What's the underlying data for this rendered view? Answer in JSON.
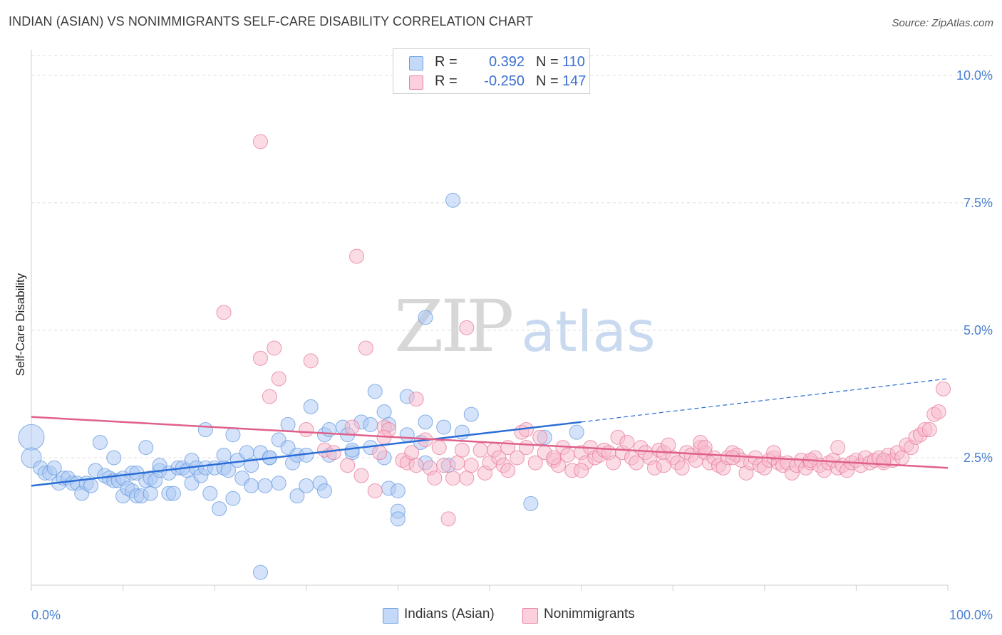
{
  "title": "INDIAN (ASIAN) VS NONIMMIGRANTS SELF-CARE DISABILITY CORRELATION CHART",
  "source": "Source: ZipAtlas.com",
  "watermark": {
    "zip": "ZIP",
    "atlas": "atlas"
  },
  "legend": {
    "rows": [
      {
        "r_label": "R =",
        "r_value": "0.392",
        "n_label": "N =",
        "n_value": "110",
        "color": "#aac8f4"
      },
      {
        "r_label": "R =",
        "r_value": "-0.250",
        "n_label": "N =",
        "n_value": "147",
        "color": "#f8b9cc"
      }
    ]
  },
  "bottom_legend": [
    {
      "label": "Indians (Asian)",
      "color": "#aac8f4"
    },
    {
      "label": "Nonimmigrants",
      "color": "#f8b9cc"
    }
  ],
  "chart_data": {
    "type": "scatter",
    "ylabel": "Self-Care Disability",
    "xlabel": "",
    "xlim": [
      0,
      100
    ],
    "ylim": [
      0,
      10.5
    ],
    "x_tick_labels": [
      "0.0%",
      "100.0%"
    ],
    "y_ticks": [
      2.5,
      5.0,
      7.5,
      10.0
    ],
    "y_tick_labels": [
      "2.5%",
      "5.0%",
      "7.5%",
      "10.0%"
    ],
    "grid": "horizontal dashed",
    "series": [
      {
        "name": "Indians (Asian)",
        "color": "#aac8f4",
        "stroke": "#6b9ee0",
        "trend_color": "#2a6dd6",
        "trend": {
          "x0": 0,
          "y0": 1.95,
          "x1": 60,
          "y1": 3.2,
          "dashed_to_x": 100,
          "dashed_to_y": 4.05
        },
        "points": [
          [
            0,
            2.9
          ],
          [
            0,
            2.5
          ],
          [
            1,
            2.3
          ],
          [
            1.5,
            2.2
          ],
          [
            2,
            2.2
          ],
          [
            2.5,
            2.3
          ],
          [
            3,
            2.0
          ],
          [
            3.5,
            2.1
          ],
          [
            4,
            2.1
          ],
          [
            4.5,
            2.0
          ],
          [
            5,
            2.0
          ],
          [
            5.5,
            1.8
          ],
          [
            6,
            2.0
          ],
          [
            6.5,
            1.95
          ],
          [
            7,
            2.25
          ],
          [
            7.5,
            2.8
          ],
          [
            8,
            2.15
          ],
          [
            8.5,
            2.1
          ],
          [
            9,
            2.5
          ],
          [
            9,
            2.05
          ],
          [
            9.5,
            2.05
          ],
          [
            10,
            2.1
          ],
          [
            10,
            1.75
          ],
          [
            10.5,
            1.9
          ],
          [
            11,
            2.2
          ],
          [
            11,
            1.85
          ],
          [
            11.5,
            2.2
          ],
          [
            11.5,
            1.75
          ],
          [
            12,
            1.75
          ],
          [
            12.5,
            2.05
          ],
          [
            12.5,
            2.7
          ],
          [
            13,
            2.1
          ],
          [
            13,
            1.8
          ],
          [
            13.5,
            2.05
          ],
          [
            14,
            2.25
          ],
          [
            14,
            2.35
          ],
          [
            15,
            2.2
          ],
          [
            15,
            1.8
          ],
          [
            15.5,
            1.8
          ],
          [
            16,
            2.3
          ],
          [
            16.5,
            2.3
          ],
          [
            17,
            2.25
          ],
          [
            17.5,
            2.45
          ],
          [
            17.5,
            2.0
          ],
          [
            18,
            2.3
          ],
          [
            18.5,
            2.15
          ],
          [
            19,
            2.3
          ],
          [
            19,
            3.05
          ],
          [
            19.5,
            1.8
          ],
          [
            20,
            2.3
          ],
          [
            20.5,
            1.5
          ],
          [
            21,
            2.55
          ],
          [
            21,
            2.3
          ],
          [
            21.5,
            2.25
          ],
          [
            22,
            2.95
          ],
          [
            22,
            1.7
          ],
          [
            22.5,
            2.45
          ],
          [
            23,
            2.1
          ],
          [
            23.5,
            2.6
          ],
          [
            24,
            2.35
          ],
          [
            24,
            1.95
          ],
          [
            25,
            2.6
          ],
          [
            25,
            0.25
          ],
          [
            25.5,
            1.95
          ],
          [
            26,
            2.5
          ],
          [
            26,
            2.5
          ],
          [
            27,
            2.0
          ],
          [
            27,
            2.85
          ],
          [
            28,
            2.7
          ],
          [
            28,
            3.15
          ],
          [
            28.5,
            2.4
          ],
          [
            29,
            2.55
          ],
          [
            29,
            1.75
          ],
          [
            30,
            1.95
          ],
          [
            30,
            2.55
          ],
          [
            30.5,
            3.5
          ],
          [
            31.5,
            2.0
          ],
          [
            32,
            1.85
          ],
          [
            32,
            2.95
          ],
          [
            32.5,
            3.05
          ],
          [
            32.5,
            2.55
          ],
          [
            34,
            3.1
          ],
          [
            34.5,
            2.95
          ],
          [
            35,
            2.6
          ],
          [
            35,
            2.65
          ],
          [
            36,
            3.2
          ],
          [
            37,
            2.7
          ],
          [
            37,
            3.15
          ],
          [
            37.5,
            3.8
          ],
          [
            38.5,
            2.5
          ],
          [
            38.5,
            3.4
          ],
          [
            39,
            1.9
          ],
          [
            39,
            3.15
          ],
          [
            40,
            1.85
          ],
          [
            40,
            1.45
          ],
          [
            40,
            1.3
          ],
          [
            41,
            3.7
          ],
          [
            41,
            2.95
          ],
          [
            42.5,
            2.8
          ],
          [
            43,
            2.4
          ],
          [
            43,
            3.2
          ],
          [
            43,
            5.25
          ],
          [
            45,
            3.1
          ],
          [
            45.5,
            2.35
          ],
          [
            46,
            7.55
          ],
          [
            47,
            3.0
          ],
          [
            48,
            3.35
          ],
          [
            56,
            2.9
          ],
          [
            54.5,
            1.6
          ],
          [
            59.5,
            3.0
          ]
        ]
      },
      {
        "name": "Nonimmigrants",
        "color": "#f8b9cc",
        "stroke": "#e87fa0",
        "trend_color": "#e0608a",
        "trend": {
          "x0": 0,
          "y0": 3.3,
          "x1": 100,
          "y1": 2.3
        },
        "points": [
          [
            25,
            8.7
          ],
          [
            35.5,
            6.45
          ],
          [
            47.5,
            5.05
          ],
          [
            21,
            5.35
          ],
          [
            26.5,
            4.65
          ],
          [
            36.5,
            4.65
          ],
          [
            25,
            4.45
          ],
          [
            30.5,
            4.4
          ],
          [
            27,
            4.05
          ],
          [
            26,
            3.7
          ],
          [
            42,
            3.65
          ],
          [
            35,
            3.1
          ],
          [
            38.5,
            3.1
          ],
          [
            30,
            3.05
          ],
          [
            39,
            3.05
          ],
          [
            32,
            2.65
          ],
          [
            33,
            2.6
          ],
          [
            34.5,
            2.35
          ],
          [
            36,
            2.15
          ],
          [
            38,
            2.6
          ],
          [
            38.5,
            2.9
          ],
          [
            37.5,
            1.85
          ],
          [
            40.5,
            2.45
          ],
          [
            41,
            2.4
          ],
          [
            41.5,
            2.6
          ],
          [
            42,
            2.35
          ],
          [
            43,
            2.85
          ],
          [
            43.5,
            2.3
          ],
          [
            44,
            2.1
          ],
          [
            44.5,
            2.7
          ],
          [
            45,
            2.35
          ],
          [
            45.5,
            1.3
          ],
          [
            46,
            2.1
          ],
          [
            46.5,
            2.4
          ],
          [
            47,
            2.65
          ],
          [
            47.5,
            2.1
          ],
          [
            48,
            2.35
          ],
          [
            49,
            2.65
          ],
          [
            49.5,
            2.2
          ],
          [
            50,
            2.4
          ],
          [
            50.5,
            2.65
          ],
          [
            51,
            2.5
          ],
          [
            51.5,
            2.35
          ],
          [
            52,
            2.7
          ],
          [
            53,
            2.5
          ],
          [
            53.5,
            3.0
          ],
          [
            54,
            3.05
          ],
          [
            54,
            2.7
          ],
          [
            55,
            2.4
          ],
          [
            55.5,
            2.9
          ],
          [
            56,
            2.6
          ],
          [
            57,
            2.45
          ],
          [
            57.5,
            2.35
          ],
          [
            58,
            2.7
          ],
          [
            58.5,
            2.55
          ],
          [
            59,
            2.25
          ],
          [
            60,
            2.6
          ],
          [
            60.5,
            2.4
          ],
          [
            61,
            2.7
          ],
          [
            61.5,
            2.5
          ],
          [
            62,
            2.55
          ],
          [
            62.5,
            2.65
          ],
          [
            63,
            2.6
          ],
          [
            63.5,
            2.4
          ],
          [
            64,
            2.9
          ],
          [
            64.5,
            2.6
          ],
          [
            65,
            2.8
          ],
          [
            65.5,
            2.5
          ],
          [
            66,
            2.4
          ],
          [
            66.5,
            2.7
          ],
          [
            67,
            2.6
          ],
          [
            67.5,
            2.5
          ],
          [
            68,
            2.3
          ],
          [
            68.5,
            2.65
          ],
          [
            69,
            2.6
          ],
          [
            69.5,
            2.75
          ],
          [
            70,
            2.5
          ],
          [
            70.5,
            2.4
          ],
          [
            71,
            2.3
          ],
          [
            71.5,
            2.6
          ],
          [
            72,
            2.55
          ],
          [
            72.5,
            2.45
          ],
          [
            73,
            2.7
          ],
          [
            73.5,
            2.6
          ],
          [
            74,
            2.4
          ],
          [
            74.5,
            2.5
          ],
          [
            75,
            2.35
          ],
          [
            75.5,
            2.3
          ],
          [
            76,
            2.5
          ],
          [
            76.5,
            2.6
          ],
          [
            77,
            2.55
          ],
          [
            77.5,
            2.45
          ],
          [
            78,
            2.2
          ],
          [
            78.5,
            2.4
          ],
          [
            79,
            2.5
          ],
          [
            79.5,
            2.35
          ],
          [
            80,
            2.3
          ],
          [
            80.5,
            2.45
          ],
          [
            81,
            2.5
          ],
          [
            81.5,
            2.4
          ],
          [
            82,
            2.35
          ],
          [
            82.5,
            2.4
          ],
          [
            83,
            2.2
          ],
          [
            83.5,
            2.35
          ],
          [
            84,
            2.45
          ],
          [
            84.5,
            2.3
          ],
          [
            85,
            2.4
          ],
          [
            85.5,
            2.5
          ],
          [
            86,
            2.35
          ],
          [
            86.5,
            2.25
          ],
          [
            87,
            2.4
          ],
          [
            87.5,
            2.45
          ],
          [
            88,
            2.3
          ],
          [
            88.5,
            2.35
          ],
          [
            89,
            2.25
          ],
          [
            89.5,
            2.4
          ],
          [
            90,
            2.45
          ],
          [
            90.5,
            2.35
          ],
          [
            91,
            2.5
          ],
          [
            91.5,
            2.4
          ],
          [
            92,
            2.45
          ],
          [
            92.5,
            2.5
          ],
          [
            93,
            2.4
          ],
          [
            93.5,
            2.55
          ],
          [
            94,
            2.45
          ],
          [
            94.5,
            2.6
          ],
          [
            95,
            2.5
          ],
          [
            95.5,
            2.75
          ],
          [
            96,
            2.7
          ],
          [
            96.5,
            2.9
          ],
          [
            97,
            2.95
          ],
          [
            97.5,
            3.05
          ],
          [
            98,
            3.05
          ],
          [
            98.5,
            3.35
          ],
          [
            99,
            3.4
          ],
          [
            99.5,
            3.85
          ],
          [
            73,
            2.8
          ],
          [
            73.5,
            2.7
          ],
          [
            81,
            2.6
          ],
          [
            88,
            2.7
          ],
          [
            85,
            2.45
          ],
          [
            93,
            2.45
          ],
          [
            76.5,
            2.5
          ],
          [
            69,
            2.35
          ],
          [
            60,
            2.25
          ],
          [
            57,
            2.5
          ],
          [
            52,
            2.25
          ]
        ]
      }
    ]
  }
}
